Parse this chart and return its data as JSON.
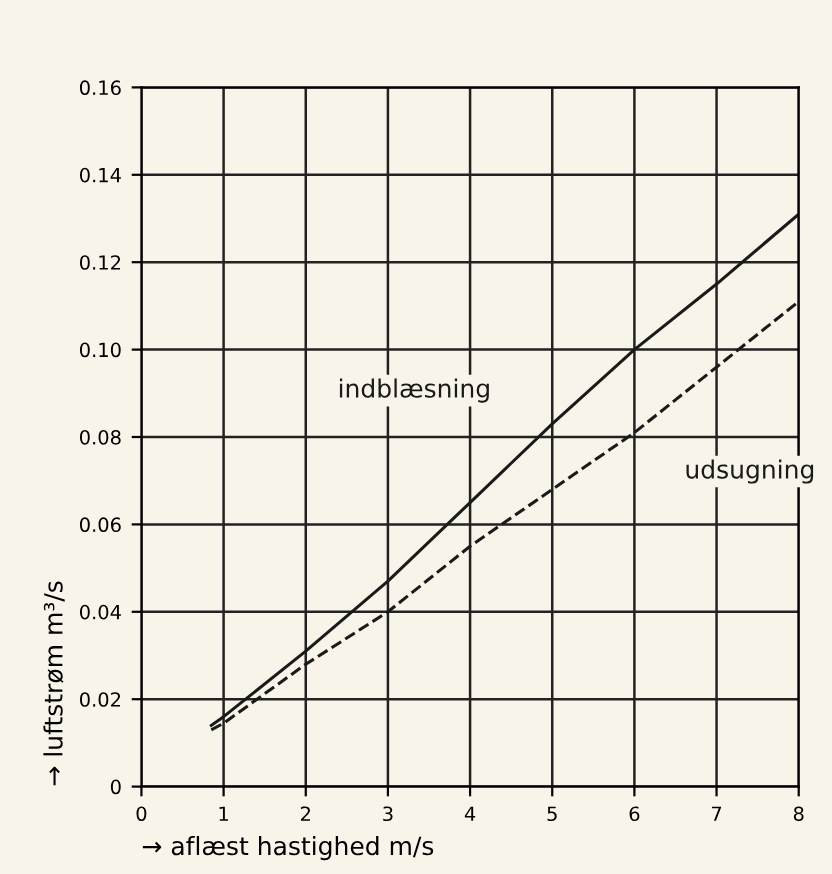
{
  "chart_data": {
    "type": "line",
    "xlabel": "→ aflæst hastighed m/s",
    "ylabel": "→ luftstrøm m³/s",
    "xlim": [
      0,
      8
    ],
    "xticks": [
      0,
      1,
      2,
      3,
      4,
      5,
      6,
      7,
      8
    ],
    "ylim": [
      0,
      0.16
    ],
    "yticks": [
      0,
      {
        "value": 0.02,
        "label": "0.02"
      },
      {
        "value": 0.04,
        "label": "0.04"
      },
      {
        "value": 0.06,
        "label": "0.06"
      },
      {
        "value": 0.08,
        "label": "0.08"
      },
      {
        "value": 0.1,
        "label": "0.10"
      },
      {
        "value": 0.12,
        "label": "0.12"
      },
      {
        "value": 0.14,
        "label": "0.14"
      },
      {
        "value": 0.16,
        "label": "0.16"
      }
    ],
    "grid": true,
    "legend": false,
    "marker": "none",
    "series": [
      {
        "name": "indblæsning",
        "color": "#1a1a1a",
        "line_style": "solid",
        "x": [
          0.85,
          1,
          2,
          3,
          4,
          5,
          6,
          7,
          8
        ],
        "values": [
          0.014,
          0.016,
          0.031,
          0.047,
          0.065,
          0.083,
          0.1,
          0.115,
          0.131
        ]
      },
      {
        "name": "udsugning",
        "color": "#1a1a1a",
        "line_style": "dashed",
        "x": [
          0.85,
          1,
          2,
          3,
          4,
          5,
          6,
          7,
          8
        ],
        "values": [
          0.013,
          0.0145,
          0.028,
          0.04,
          0.055,
          0.068,
          0.081,
          0.096,
          0.111
        ]
      }
    ]
  }
}
